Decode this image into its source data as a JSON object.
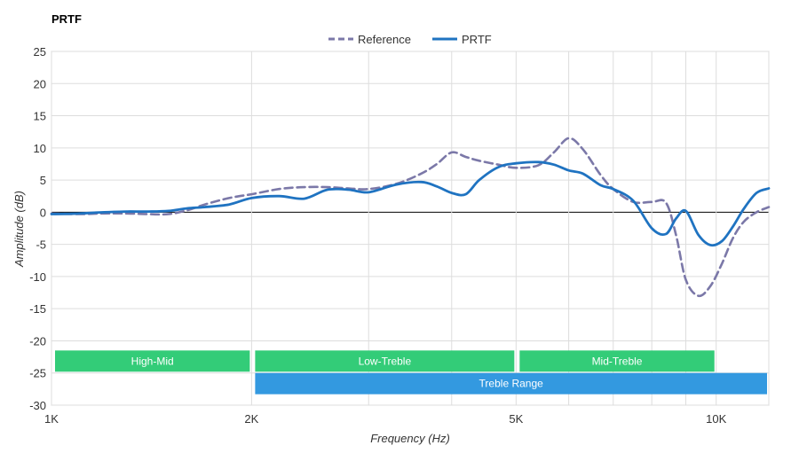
{
  "chart_data": {
    "type": "line",
    "title": "PRTF",
    "xlabel": "Frequency (Hz)",
    "ylabel": "Amplitude (dB)",
    "xscale": "log",
    "xlim": [
      1000,
      12000
    ],
    "ylim": [
      -30,
      25
    ],
    "grid": true,
    "legend_position": "top-center",
    "x_tick_labels": [
      {
        "value": 1000,
        "label": "1K"
      },
      {
        "value": 2000,
        "label": "2K"
      },
      {
        "value": 5000,
        "label": "5K"
      },
      {
        "value": 10000,
        "label": "10K"
      }
    ],
    "x_gridlines": [
      1000,
      2000,
      3000,
      4000,
      5000,
      6000,
      7000,
      8000,
      9000,
      10000,
      12000
    ],
    "y_ticks": [
      25,
      20,
      15,
      10,
      5,
      0,
      -5,
      -10,
      -15,
      -20,
      -25,
      -30
    ],
    "series": [
      {
        "name": "Reference",
        "color": "#7b78a8",
        "style": "dashed",
        "points": [
          [
            1000,
            -0.2
          ],
          [
            1100,
            -0.3
          ],
          [
            1200,
            -0.2
          ],
          [
            1300,
            -0.2
          ],
          [
            1400,
            -0.3
          ],
          [
            1500,
            -0.3
          ],
          [
            1600,
            0.3
          ],
          [
            1700,
            1.2
          ],
          [
            1850,
            2.2
          ],
          [
            2000,
            2.8
          ],
          [
            2200,
            3.6
          ],
          [
            2400,
            3.9
          ],
          [
            2600,
            3.9
          ],
          [
            2800,
            3.7
          ],
          [
            3000,
            3.6
          ],
          [
            3300,
            4.4
          ],
          [
            3600,
            6.0
          ],
          [
            3800,
            7.5
          ],
          [
            4000,
            9.3
          ],
          [
            4200,
            8.6
          ],
          [
            4400,
            8.0
          ],
          [
            4700,
            7.4
          ],
          [
            5000,
            6.9
          ],
          [
            5400,
            7.3
          ],
          [
            5700,
            9.3
          ],
          [
            6000,
            11.5
          ],
          [
            6300,
            9.8
          ],
          [
            6700,
            5.8
          ],
          [
            7000,
            3.6
          ],
          [
            7500,
            1.6
          ],
          [
            8000,
            1.6
          ],
          [
            8400,
            1.5
          ],
          [
            8700,
            -3.5
          ],
          [
            9000,
            -10.5
          ],
          [
            9400,
            -13.0
          ],
          [
            9800,
            -11.5
          ],
          [
            10200,
            -8.0
          ],
          [
            10600,
            -4.0
          ],
          [
            11000,
            -1.5
          ],
          [
            11500,
            0.0
          ],
          [
            12000,
            0.8
          ]
        ]
      },
      {
        "name": "PRTF",
        "color": "#1f73c1",
        "style": "solid",
        "points": [
          [
            1000,
            -0.3
          ],
          [
            1100,
            -0.2
          ],
          [
            1200,
            0.0
          ],
          [
            1300,
            0.1
          ],
          [
            1400,
            0.1
          ],
          [
            1500,
            0.2
          ],
          [
            1600,
            0.6
          ],
          [
            1700,
            0.8
          ],
          [
            1850,
            1.2
          ],
          [
            2000,
            2.2
          ],
          [
            2200,
            2.5
          ],
          [
            2400,
            2.1
          ],
          [
            2600,
            3.5
          ],
          [
            2800,
            3.5
          ],
          [
            3000,
            3.1
          ],
          [
            3300,
            4.3
          ],
          [
            3600,
            4.7
          ],
          [
            3800,
            4.0
          ],
          [
            4000,
            3.0
          ],
          [
            4200,
            2.8
          ],
          [
            4400,
            5.0
          ],
          [
            4700,
            7.0
          ],
          [
            5000,
            7.6
          ],
          [
            5400,
            7.8
          ],
          [
            5700,
            7.4
          ],
          [
            6000,
            6.5
          ],
          [
            6300,
            6.0
          ],
          [
            6700,
            4.2
          ],
          [
            7000,
            3.6
          ],
          [
            7500,
            1.8
          ],
          [
            8000,
            -2.5
          ],
          [
            8400,
            -3.4
          ],
          [
            8700,
            -1.0
          ],
          [
            9000,
            0.2
          ],
          [
            9400,
            -3.5
          ],
          [
            9800,
            -5.1
          ],
          [
            10200,
            -4.5
          ],
          [
            10600,
            -2.2
          ],
          [
            11000,
            0.5
          ],
          [
            11500,
            3.0
          ],
          [
            12000,
            3.7
          ]
        ]
      }
    ],
    "bands": [
      {
        "label": "High-Mid",
        "x0": 1000,
        "x1": 2000,
        "y_top": -21.5,
        "y_bottom": -24.8,
        "color": "#33cc78"
      },
      {
        "label": "Low-Treble",
        "x0": 2000,
        "x1": 5000,
        "y_top": -21.5,
        "y_bottom": -24.8,
        "color": "#33cc78"
      },
      {
        "label": "Mid-Treble",
        "x0": 5000,
        "x1": 10000,
        "y_top": -21.5,
        "y_bottom": -24.8,
        "color": "#33cc78"
      },
      {
        "label": "Treble Range",
        "x0": 2000,
        "x1": 12000,
        "y_top": -25.0,
        "y_bottom": -28.3,
        "color": "#3399e0"
      }
    ]
  }
}
